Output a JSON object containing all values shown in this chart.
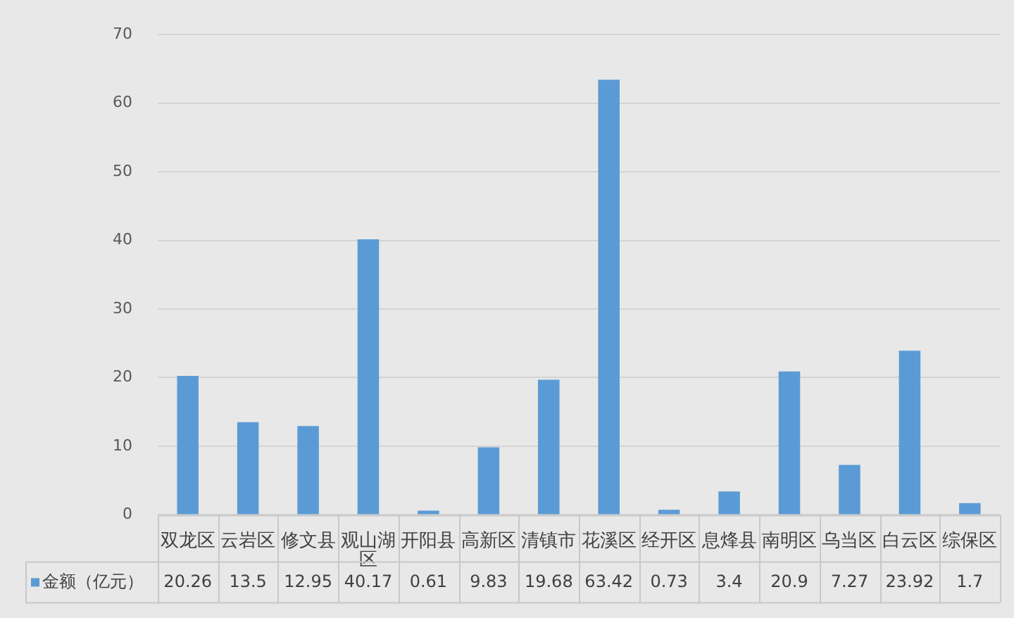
{
  "chart_data": {
    "type": "bar",
    "categories": [
      "双龙区",
      "云岩区",
      "修文县",
      "观山湖区",
      "开阳县",
      "高新区",
      "清镇市",
      "花溪区",
      "经开区",
      "息烽县",
      "南明区",
      "乌当区",
      "白云区",
      "综保区"
    ],
    "series": [
      {
        "name": "金额（亿元）",
        "color": "#5b9bd5",
        "values": [
          20.26,
          13.5,
          12.95,
          40.17,
          0.61,
          9.83,
          19.68,
          63.42,
          0.73,
          3.4,
          20.9,
          7.27,
          23.92,
          1.7
        ]
      }
    ],
    "ylim": [
      0,
      70
    ],
    "yticks": [
      0,
      10,
      20,
      30,
      40,
      50,
      60,
      70
    ],
    "grid": "y",
    "legend": "bottom",
    "data_labels": true
  }
}
